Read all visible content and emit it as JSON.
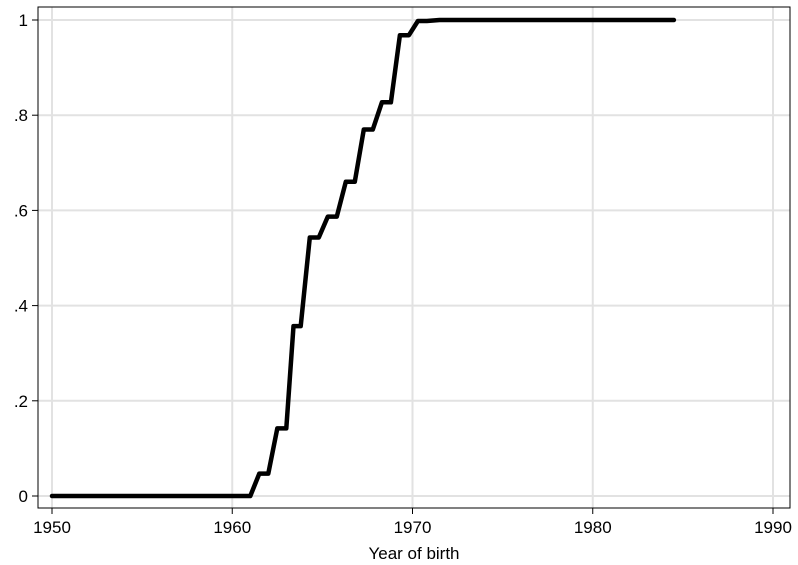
{
  "chart_data": {
    "type": "line",
    "title": "",
    "xlabel": "Year of birth",
    "ylabel": "",
    "xlim": [
      1950,
      1990
    ],
    "ylim": [
      0,
      1
    ],
    "x_ticks": [
      {
        "value": 1950,
        "label": "1950"
      },
      {
        "value": 1960,
        "label": "1960"
      },
      {
        "value": 1970,
        "label": "1970"
      },
      {
        "value": 1980,
        "label": "1980"
      },
      {
        "value": 1990,
        "label": "1990"
      }
    ],
    "y_ticks": [
      {
        "value": 0,
        "label": "0"
      },
      {
        "value": 0.2,
        "label": ".2"
      },
      {
        "value": 0.4,
        "label": ".4"
      },
      {
        "value": 0.6,
        "label": ".6"
      },
      {
        "value": 0.8,
        "label": ".8"
      },
      {
        "value": 1,
        "label": "1"
      }
    ],
    "grid": true,
    "legend": "none",
    "line_color": "#000000",
    "series": [
      {
        "x": [
          1950,
          1961,
          1961.5,
          1962,
          1962.5,
          1963,
          1963.4,
          1963.8,
          1964.3,
          1964.8,
          1965.3,
          1965.8,
          1966.3,
          1966.8,
          1967.3,
          1967.8,
          1968.3,
          1968.8,
          1969.3,
          1969.8,
          1970.3,
          1970.8,
          1971.5,
          1984.5
        ],
        "y": [
          0,
          0,
          0.047,
          0.047,
          0.142,
          0.142,
          0.357,
          0.357,
          0.543,
          0.543,
          0.587,
          0.587,
          0.66,
          0.66,
          0.77,
          0.77,
          0.827,
          0.827,
          0.968,
          0.968,
          0.998,
          0.998,
          1,
          1
        ]
      }
    ]
  }
}
